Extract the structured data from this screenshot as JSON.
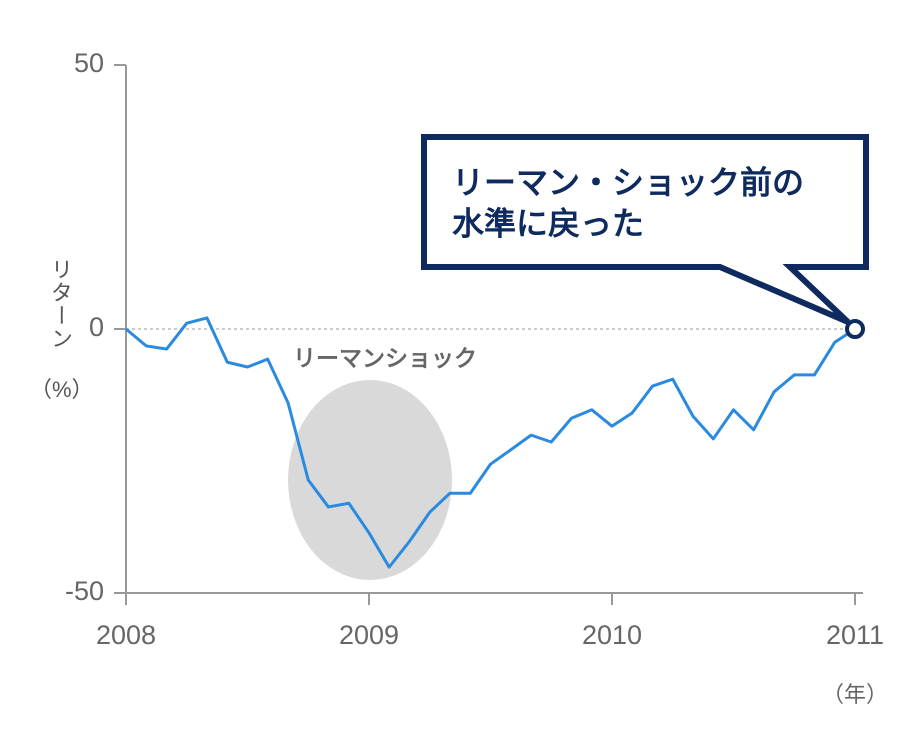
{
  "chart_data": {
    "type": "line",
    "y_label": "リターン",
    "y_unit": "（%）",
    "x_unit": "（年）",
    "annotation": "リーマンショック",
    "callout": [
      "リーマン・ショック前の",
      "水準に戻った"
    ],
    "x": [
      2008.0,
      2008.083,
      2008.167,
      2008.25,
      2008.333,
      2008.417,
      2008.5,
      2008.583,
      2008.667,
      2008.75,
      2008.833,
      2008.917,
      2009.0,
      2009.083,
      2009.167,
      2009.25,
      2009.333,
      2009.417,
      2009.5,
      2009.583,
      2009.667,
      2009.75,
      2009.833,
      2009.917,
      2010.0,
      2010.083,
      2010.167,
      2010.25,
      2010.333,
      2010.417,
      2010.5,
      2010.583,
      2010.667,
      2010.75,
      2010.833,
      2010.917,
      2011.0
    ],
    "series": [
      {
        "color": "#2a8ae0",
        "values": [
          0,
          -3.2,
          -3.8,
          1.1,
          2.1,
          -6.3,
          -7.2,
          -5.7,
          -14.0,
          -28.6,
          -33.7,
          -33.0,
          -38.6,
          -45.1,
          -40.2,
          -34.7,
          -31.1,
          -31.1,
          -25.6,
          -22.9,
          -20.1,
          -21.4,
          -16.9,
          -15.3,
          -18.4,
          -15.9,
          -10.8,
          -9.5,
          -16.5,
          -20.8,
          -15.3,
          -19.1,
          -11.9,
          -8.7,
          -8.7,
          -2.5,
          0
        ]
      }
    ],
    "xlim": [
      2008,
      2011
    ],
    "xticks": [
      2008,
      2009,
      2010,
      2011
    ],
    "ylim": [
      -50,
      50
    ],
    "yticks": [
      -50,
      0,
      50
    ]
  }
}
